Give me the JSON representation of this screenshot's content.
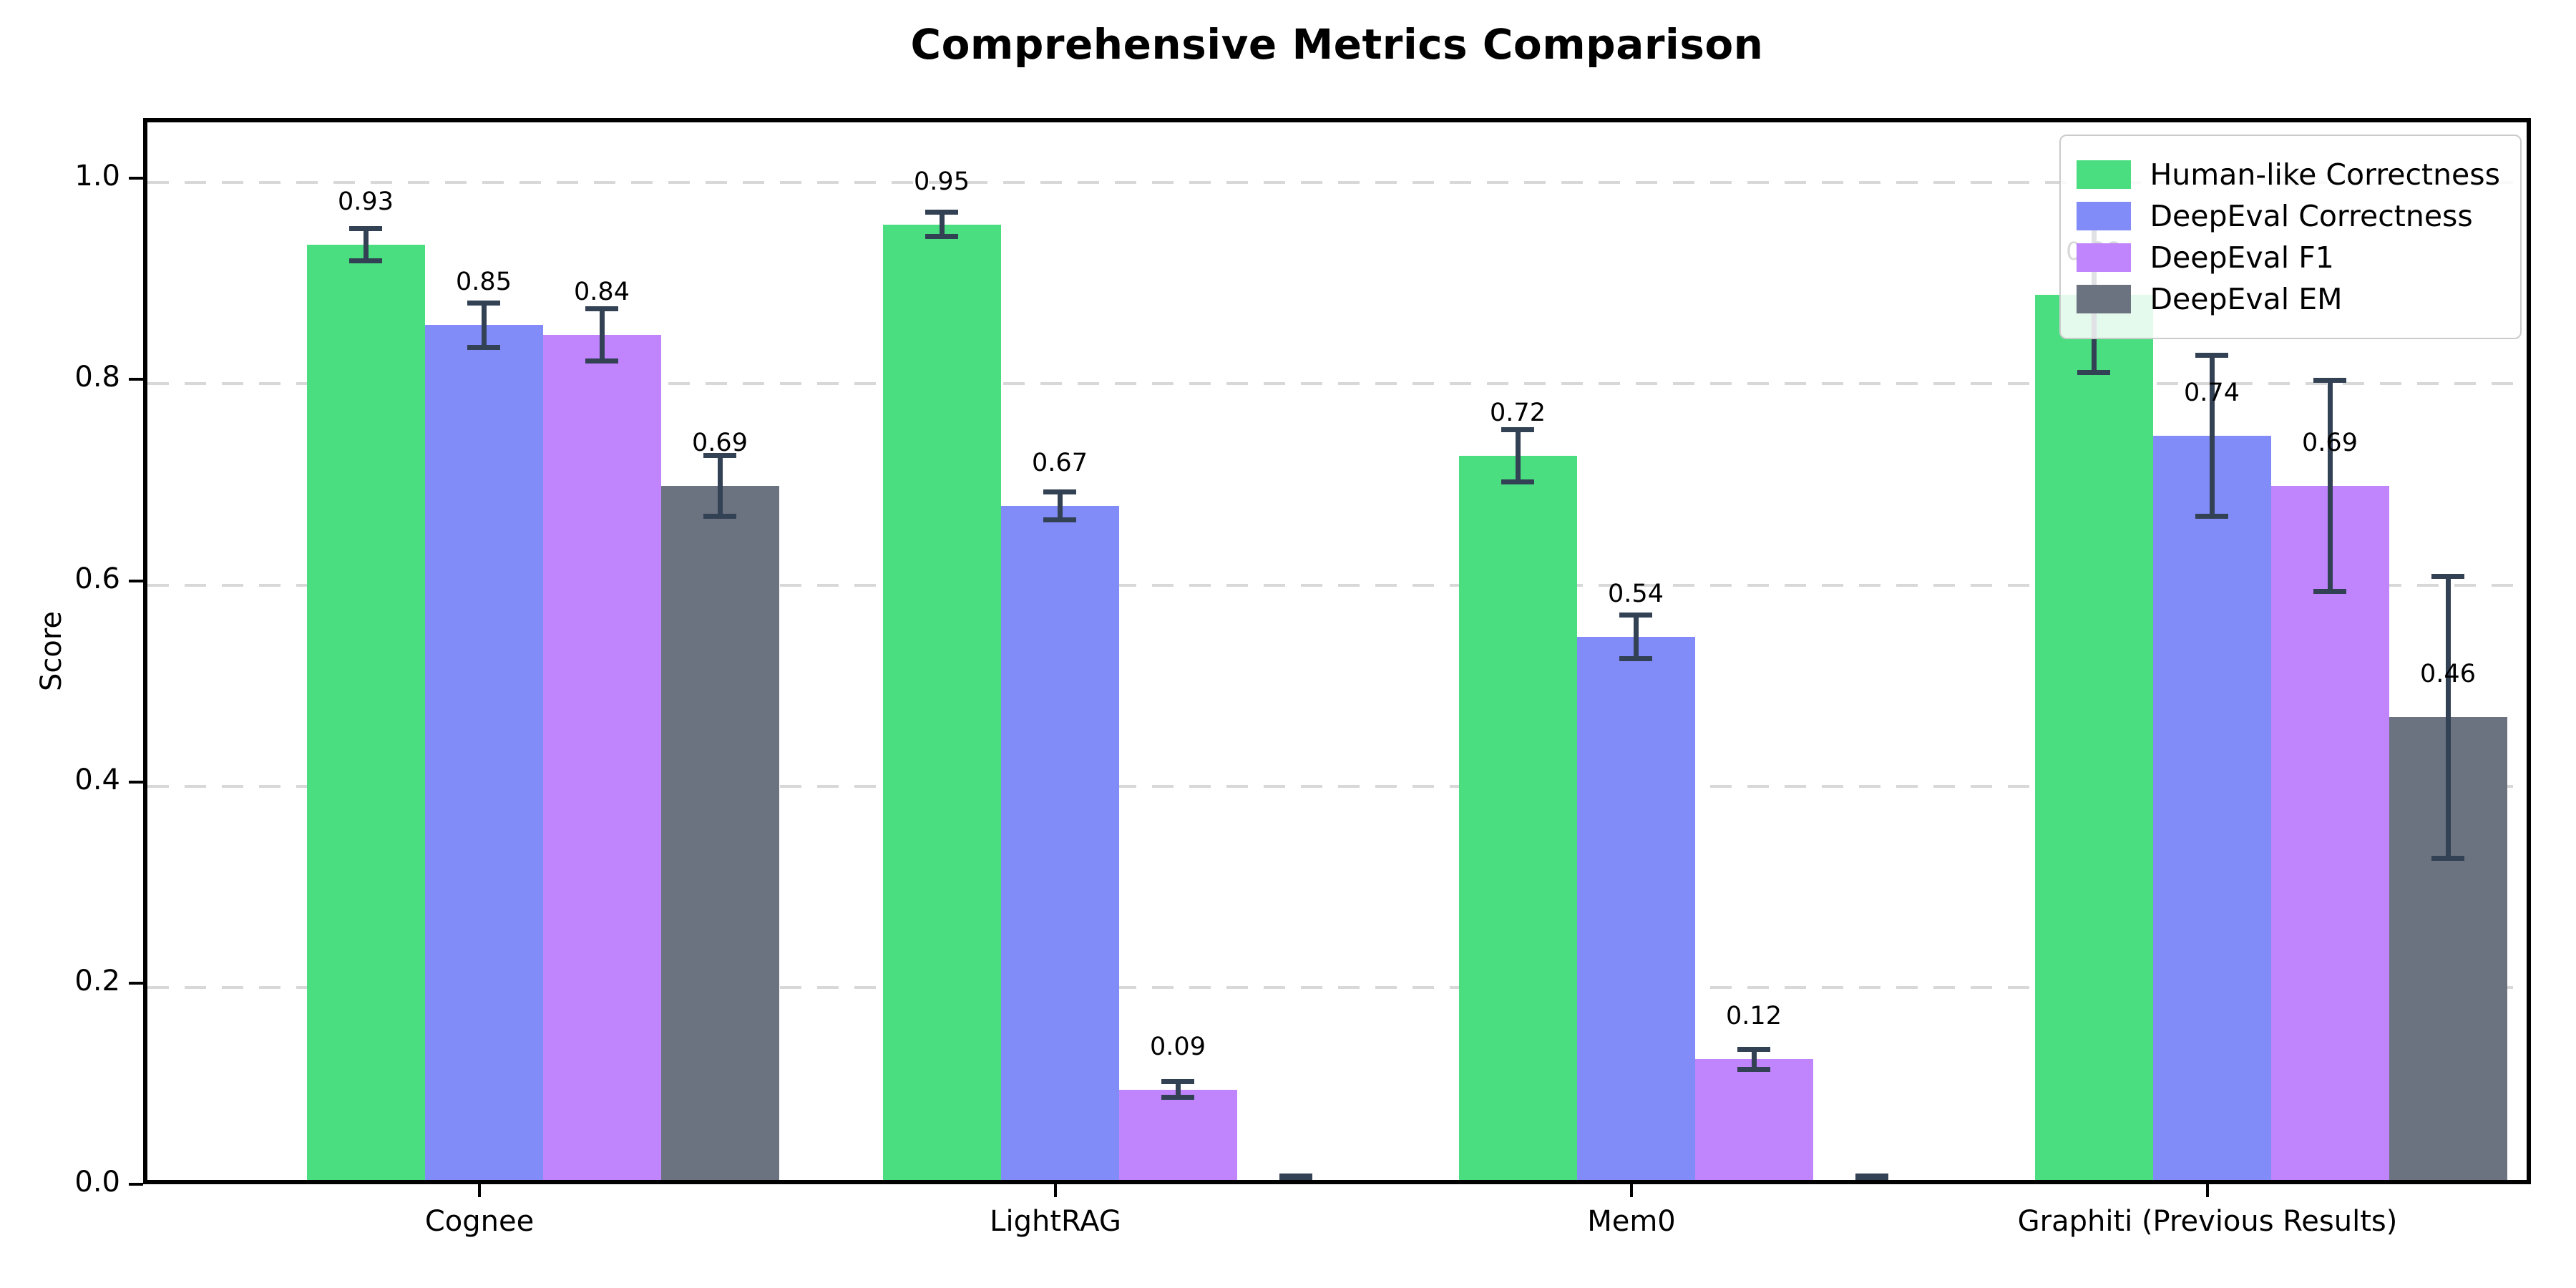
{
  "chart_data": {
    "type": "bar",
    "title": "Comprehensive Metrics Comparison",
    "xlabel": "",
    "ylabel": "Score",
    "ylim": [
      0,
      1.06
    ],
    "yticks": [
      "0.0",
      "0.2",
      "0.4",
      "0.6",
      "0.8",
      "1.0"
    ],
    "ytick_values": [
      0.0,
      0.2,
      0.4,
      0.6,
      0.8,
      1.0
    ],
    "grid": "horizontal dashed",
    "legend_position": "upper right",
    "categories": [
      "Cognee",
      "LightRAG",
      "Mem0",
      "Graphiti (Previous Results)"
    ],
    "series": [
      {
        "name": "Human-like Correctness",
        "color": "#4ade80",
        "values": [
          0.93,
          0.95,
          0.72,
          0.88
        ],
        "errors": [
          0.016,
          0.012,
          0.026,
          0.077
        ],
        "labels": [
          "0.93",
          "0.95",
          "0.72",
          "0.88"
        ]
      },
      {
        "name": "DeepEval Correctness",
        "color": "#818cf8",
        "values": [
          0.85,
          0.67,
          0.54,
          0.74
        ],
        "errors": [
          0.022,
          0.014,
          0.022,
          0.08
        ],
        "labels": [
          "0.85",
          "0.67",
          "0.54",
          "0.74"
        ]
      },
      {
        "name": "DeepEval F1",
        "color": "#c084fc",
        "values": [
          0.84,
          0.09,
          0.12,
          0.69
        ],
        "errors": [
          0.026,
          0.008,
          0.01,
          0.105
        ],
        "labels": [
          "0.84",
          "0.09",
          "0.12",
          "0.69"
        ]
      },
      {
        "name": "DeepEval EM",
        "color": "#6b7280",
        "values": [
          0.69,
          0.0,
          0.0,
          0.46
        ],
        "errors": [
          0.03,
          0.004,
          0.004,
          0.14
        ],
        "labels": [
          "0.69",
          "",
          "",
          "0.46"
        ]
      }
    ],
    "errorbar_color": "#334155",
    "gridline_color": "#d8d8d8"
  }
}
